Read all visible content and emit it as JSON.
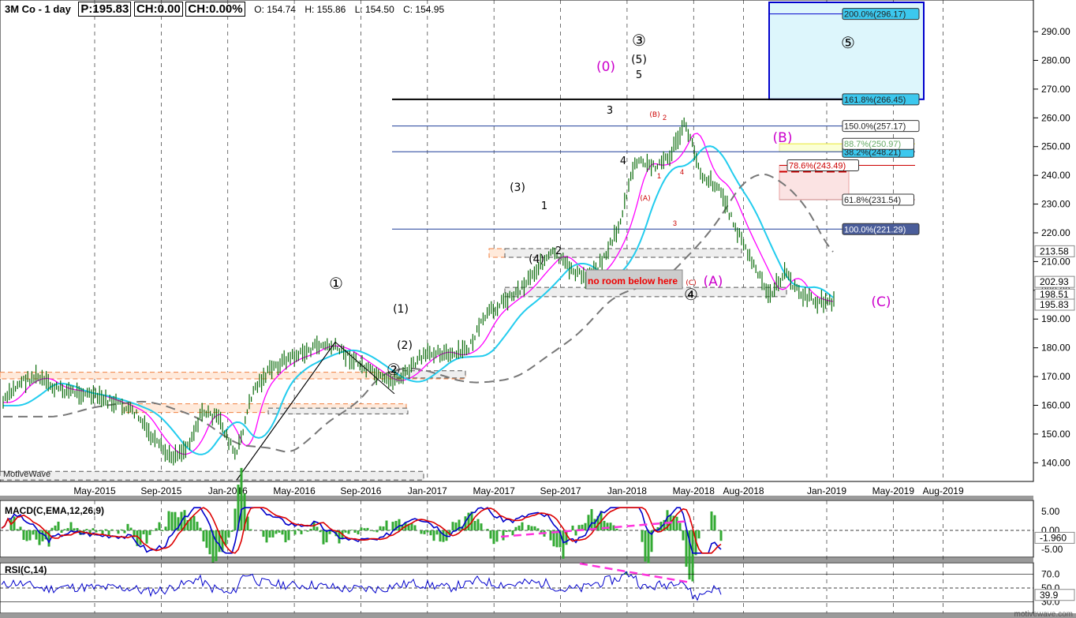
{
  "header": {
    "title": "3M Co - 1 day",
    "price": "P:195.83",
    "change": "CH:0.00",
    "change_pct": "CH:0.00%",
    "open": "O: 154.74",
    "high": "H: 155.86",
    "low": "L: 154.50",
    "close": "C: 154.95"
  },
  "watermark": "MotiveWave",
  "footer_watermark": "motivewave.com",
  "colors": {
    "price_bar": "#0a6b0a",
    "ma_fast": "#ff00ff",
    "ma_mid": "#22ccee",
    "ma_slow": "#777777",
    "fib_line": "#1f3f99",
    "macd": "#0000cc",
    "signal": "#dd0000",
    "hist": "#33aa33",
    "rsi": "#0000cc",
    "divergence": "#ff33dd",
    "wave_minor": "#cc00cc"
  },
  "chart_data": [
    {
      "type": "line",
      "title": "3M Co - 1 day",
      "x_ticks": [
        "May-2015",
        "Sep-2015",
        "Jan-2016",
        "May-2016",
        "Sep-2016",
        "Jan-2017",
        "May-2017",
        "Sep-2017",
        "Jan-2018",
        "May-2018",
        "Aug-2018",
        "Jan-2019",
        "May-2019",
        "Aug-2019"
      ],
      "x_tick_index": [
        7.5,
        11.5,
        15.5,
        19.5,
        23.5,
        27.5,
        31.5,
        35.5,
        39.5,
        43.5,
        46.5,
        51.5,
        55.5,
        58.5
      ],
      "y_ticks": [
        140,
        150,
        160,
        170,
        180,
        190,
        200,
        210,
        220,
        230,
        240,
        250,
        260,
        270,
        280,
        290
      ],
      "ylim": [
        133.5,
        301
      ],
      "grid": true,
      "series": [
        {
          "values": [
            161,
            168,
            170,
            166,
            165,
            164,
            162,
            160,
            157,
            148,
            142,
            145,
            158,
            155,
            142,
            165,
            172,
            176,
            178,
            181,
            180,
            176,
            172,
            168,
            170,
            176,
            179,
            177,
            180,
            191,
            196,
            200,
            207,
            213,
            208,
            204,
            210,
            222,
            245,
            243,
            246,
            258,
            240,
            236,
            222,
            210,
            198,
            206,
            198,
            196,
            196
          ]
        }
      ],
      "right_axis_tags": [
        "213.58",
        "202.93",
        "198.51",
        "195.83"
      ],
      "levels": [
        {
          "label": "100.0%(221.29)",
          "value": 221.29
        },
        {
          "label": "61.8%(231.54)",
          "value": 231.54
        },
        {
          "label": "78.6%(243.49)",
          "value": 243.49
        },
        {
          "label": "38.2%(248.21)",
          "value": 248.21
        },
        {
          "label": "88.7%(250.97)",
          "value": 250.97
        },
        {
          "label": "150.0%(257.17)",
          "value": 257.17
        },
        {
          "label": "161.8%(266.45)",
          "value": 266.45
        },
        {
          "label": "200.0%(296.17)",
          "value": 296.17
        }
      ],
      "annotations": [
        "①",
        "②",
        "③",
        "④",
        "⑤",
        "(1)",
        "(2)",
        "(3)",
        "(4)",
        "(5)",
        "(0)",
        "(A)",
        "(B)",
        "(C)",
        "1",
        "2",
        "3",
        "4",
        "5",
        "(A)",
        "(B)",
        "(C)",
        "no room below here"
      ]
    },
    {
      "type": "line",
      "title": "MACD(C,EMA,12,26,9)",
      "y_ticks": [
        "5.00",
        "0.00",
        "-5.00"
      ],
      "last_value": "-1.960"
    },
    {
      "type": "line",
      "title": "RSI(C,14)",
      "y_ticks": [
        "70.0",
        "50.0",
        "30.0"
      ],
      "last_value": "39.9"
    }
  ]
}
